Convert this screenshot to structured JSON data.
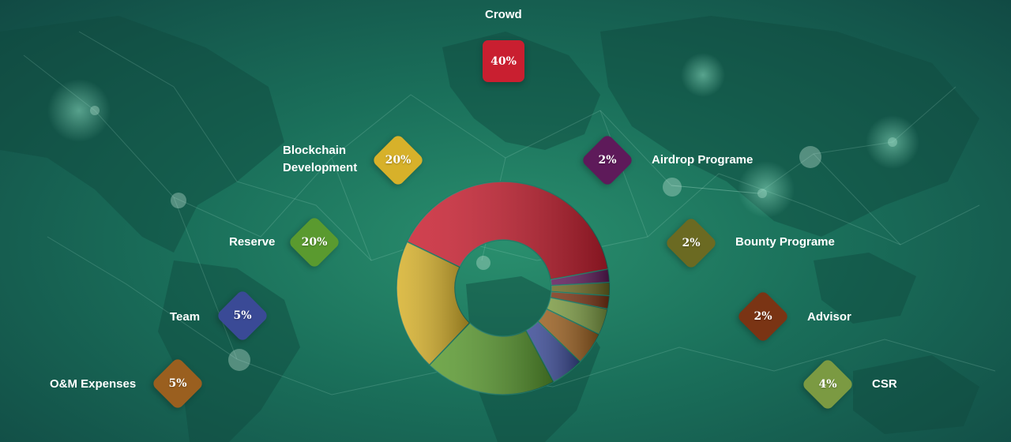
{
  "chart_data": {
    "type": "pie",
    "title": "",
    "categories": [
      "Crowd",
      "Airdrop Programe",
      "Bounty Programe",
      "Advisor",
      "CSR",
      "O&M Expenses",
      "Team",
      "Reserve",
      "Blockchain Development"
    ],
    "values": [
      40,
      2,
      2,
      2,
      4,
      5,
      5,
      20,
      20
    ],
    "value_labels": [
      "40%",
      "2%",
      "2%",
      "2%",
      "4%",
      "5%",
      "5%",
      "20%",
      "20%"
    ],
    "colors": [
      "#c91f30",
      "#5e1a5a",
      "#6b6a22",
      "#7a3414",
      "#7b9a42",
      "#9a5f1f",
      "#3a4a96",
      "#5a9a2f",
      "#d7b12a"
    ],
    "legend": "around chart",
    "donut": true
  },
  "segments": {
    "crowd": {
      "label": "Crowd",
      "value": "40%",
      "color": "#c91f30"
    },
    "blockchain": {
      "label": "Blockchain Development",
      "line1": "Blockchain",
      "line2": "Development",
      "value": "20%",
      "color": "#d7b12a"
    },
    "reserve": {
      "label": "Reserve",
      "value": "20%",
      "color": "#5a9a2f"
    },
    "team": {
      "label": "Team",
      "value": "5%",
      "color": "#3a4a96"
    },
    "om": {
      "label": "O&M Expenses",
      "value": "5%",
      "color": "#9a5f1f"
    },
    "airdrop": {
      "label": "Airdrop Programe",
      "value": "2%",
      "color": "#5e1a5a"
    },
    "bounty": {
      "label": "Bounty Programe",
      "value": "2%",
      "color": "#6b6a22"
    },
    "advisor": {
      "label": "Advisor",
      "value": "2%",
      "color": "#7a3414"
    },
    "csr": {
      "label": "CSR",
      "value": "4%",
      "color": "#7b9a42"
    }
  }
}
